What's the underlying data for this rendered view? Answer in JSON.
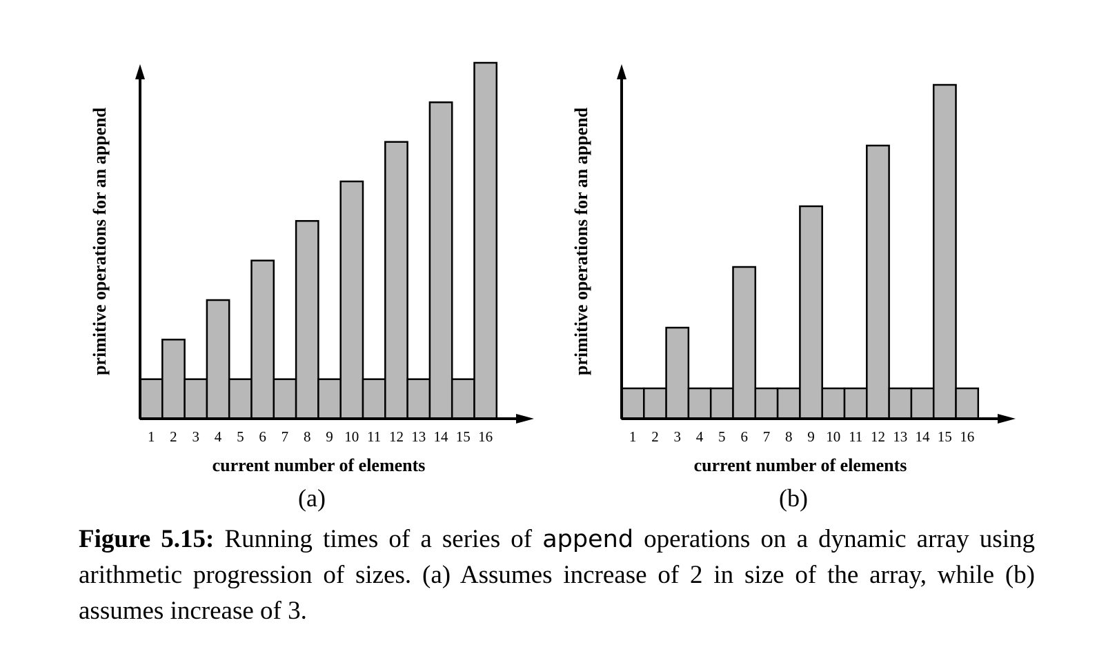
{
  "chart_data": [
    {
      "type": "bar",
      "panel_label": "(a)",
      "xlabel": "current number of elements",
      "ylabel": "primitive operations for an append",
      "categories": [
        "1",
        "2",
        "3",
        "4",
        "5",
        "6",
        "7",
        "8",
        "9",
        "10",
        "11",
        "12",
        "13",
        "14",
        "15",
        "16"
      ],
      "values": [
        1,
        2,
        1,
        3,
        1,
        4,
        1,
        5,
        1,
        6,
        1,
        7,
        1,
        8,
        1,
        9
      ],
      "ylim": [
        0,
        9
      ],
      "grid": false
    },
    {
      "type": "bar",
      "panel_label": "(b)",
      "xlabel": "current number of elements",
      "ylabel": "primitive operations for an append",
      "categories": [
        "1",
        "2",
        "3",
        "4",
        "5",
        "6",
        "7",
        "8",
        "9",
        "10",
        "11",
        "12",
        "13",
        "14",
        "15",
        "16"
      ],
      "values": [
        1,
        1,
        3,
        1,
        1,
        5,
        1,
        1,
        7,
        1,
        1,
        9,
        1,
        1,
        11,
        1
      ],
      "ylim": [
        0,
        11
      ],
      "grid": false
    }
  ],
  "colors": {
    "bar_fill": "#b8b8b8",
    "stroke": "#000000"
  },
  "caption": {
    "label": "Figure 5.15:",
    "text_before": " Running times of a series of ",
    "code": "append",
    "text_after": " operations on a dynamic array using arithmetic progression of sizes.  (a) Assumes increase of 2 in size of the array, while (b) assumes increase of 3."
  }
}
